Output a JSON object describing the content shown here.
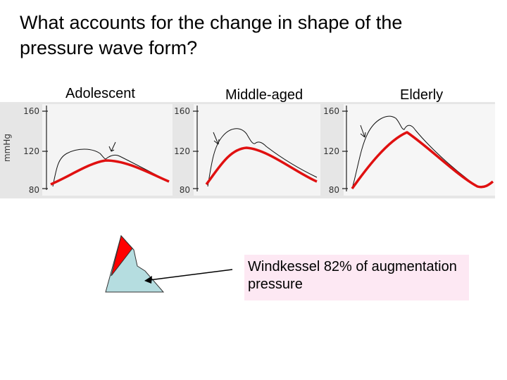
{
  "title": "What accounts for the change in shape of the pressure wave form?",
  "y_axis_label": "mmHg",
  "panels": [
    {
      "label": "Adolescent",
      "ticks": [
        "160",
        "120",
        "80"
      ]
    },
    {
      "label": "Middle-aged",
      "ticks": [
        "160",
        "120",
        "80"
      ]
    },
    {
      "label": "Elderly",
      "ticks": [
        "160",
        "120",
        "80"
      ]
    }
  ],
  "callout": "Windkessel 82% of augmentation pressure"
}
